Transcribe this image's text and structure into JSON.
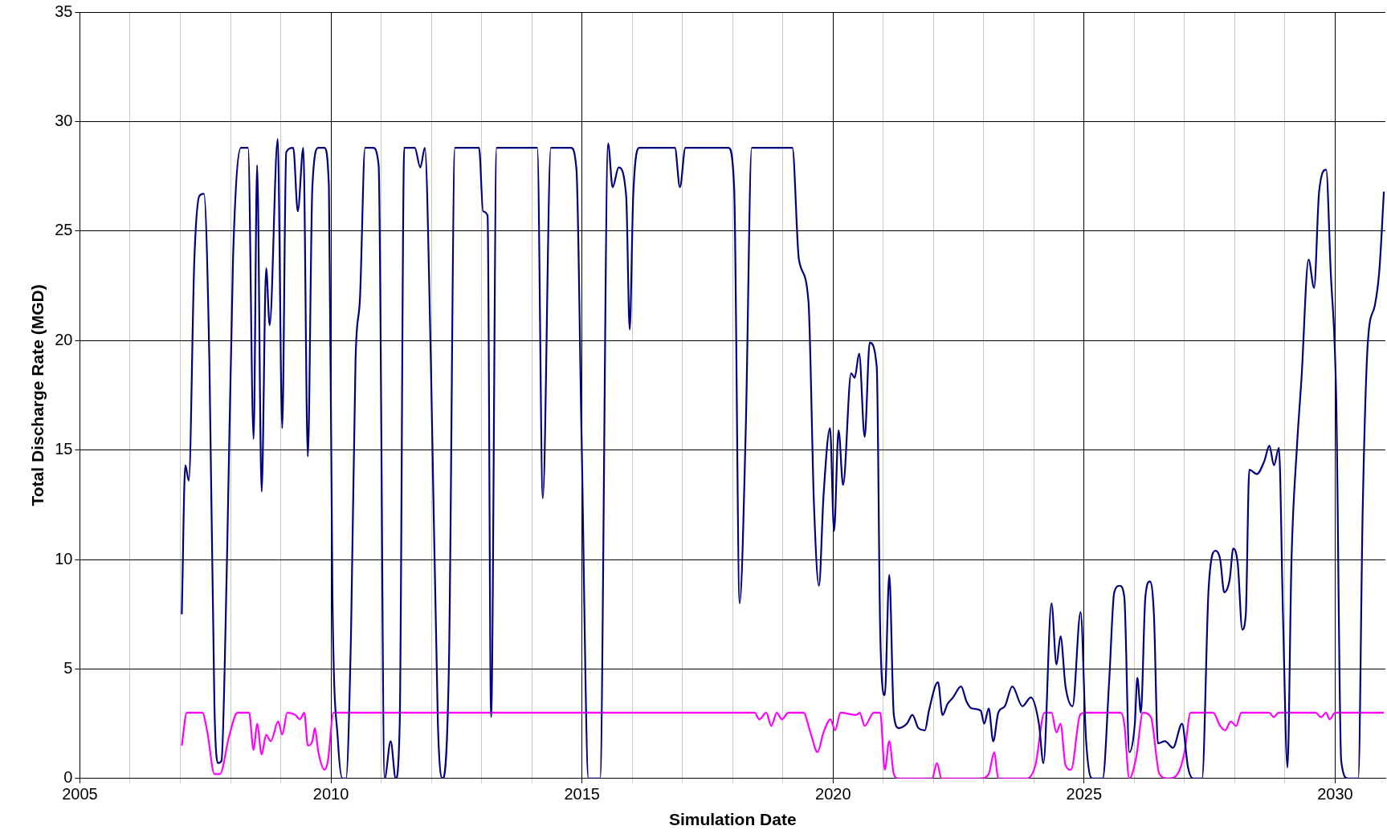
{
  "chart_data": {
    "type": "line",
    "xlabel": "Simulation Date",
    "ylabel": "Total Discharge Rate (MGD)",
    "xlim": [
      2005,
      2031
    ],
    "ylim": [
      0,
      35
    ],
    "xticks": [
      2005,
      {
        "value": 2006,
        "label": null
      },
      {
        "value": 2007,
        "label": null
      },
      {
        "value": 2008,
        "label": null
      },
      {
        "value": 2009,
        "label": null
      },
      2010,
      {
        "value": 2011,
        "label": null
      },
      {
        "value": 2012,
        "label": null
      },
      {
        "value": 2013,
        "label": null
      },
      {
        "value": 2014,
        "label": null
      },
      2015,
      {
        "value": 2016,
        "label": null
      },
      {
        "value": 2017,
        "label": null
      },
      {
        "value": 2018,
        "label": null
      },
      {
        "value": 2019,
        "label": null
      },
      2020,
      {
        "value": 2021,
        "label": null
      },
      {
        "value": 2022,
        "label": null
      },
      {
        "value": 2023,
        "label": null
      },
      {
        "value": 2024,
        "label": null
      },
      2025,
      {
        "value": 2026,
        "label": null
      },
      {
        "value": 2027,
        "label": null
      },
      {
        "value": 2028,
        "label": null
      },
      {
        "value": 2029,
        "label": null
      },
      2030
    ],
    "yticks": [
      0,
      5,
      10,
      15,
      20,
      25,
      30,
      35
    ],
    "grid": true,
    "marker": "none",
    "line_style": "solid",
    "series": [
      {
        "color": "#000080",
        "x": [
          2007.03,
          2007.1,
          2007.17,
          2007.28,
          2007.38,
          2007.47,
          2007.58,
          2007.68,
          2007.75,
          2007.82,
          2007.93,
          2008.05,
          2008.21,
          2008.35,
          2008.46,
          2008.53,
          2008.62,
          2008.71,
          2008.78,
          2008.94,
          2009.03,
          2009.11,
          2009.25,
          2009.34,
          2009.45,
          2009.54,
          2009.63,
          2009.75,
          2009.87,
          2009.96,
          2010.03,
          2010.14,
          2010.23,
          2010.3,
          2010.4,
          2010.49,
          2010.58,
          2010.68,
          2010.84,
          2010.95,
          2011.07,
          2011.19,
          2011.29,
          2011.37,
          2011.46,
          2011.67,
          2011.78,
          2011.87,
          2011.99,
          2012.13,
          2012.22,
          2012.35,
          2012.47,
          2012.95,
          2013.03,
          2013.12,
          2013.19,
          2013.3,
          2014.11,
          2014.22,
          2014.38,
          2014.78,
          2014.89,
          2014.99,
          2015.13,
          2015.36,
          2015.52,
          2015.61,
          2015.73,
          2015.88,
          2015.95,
          2016.02,
          2016.14,
          2016.85,
          2016.95,
          2017.06,
          2017.92,
          2018.03,
          2018.14,
          2018.26,
          2018.38,
          2019.19,
          2019.32,
          2019.51,
          2019.62,
          2019.72,
          2019.81,
          2019.94,
          2020.02,
          2020.11,
          2020.2,
          2020.36,
          2020.43,
          2020.52,
          2020.63,
          2020.73,
          2020.87,
          2020.94,
          2021.03,
          2021.12,
          2021.21,
          2021.31,
          2021.47,
          2021.58,
          2021.7,
          2021.83,
          2021.91,
          2022.09,
          2022.18,
          2022.28,
          2022.39,
          2022.55,
          2022.66,
          2022.76,
          2022.94,
          2023.01,
          2023.1,
          2023.19,
          2023.29,
          2023.42,
          2023.57,
          2023.77,
          2023.94,
          2024.1,
          2024.19,
          2024.35,
          2024.45,
          2024.53,
          2024.63,
          2024.77,
          2024.93,
          2025.04,
          2025.16,
          2025.37,
          2025.5,
          2025.6,
          2025.71,
          2025.8,
          2025.9,
          2026.01,
          2026.06,
          2026.13,
          2026.22,
          2026.31,
          2026.39,
          2026.47,
          2026.61,
          2026.77,
          2026.95,
          2027.07,
          2027.17,
          2027.35,
          2027.48,
          2027.62,
          2027.71,
          2027.79,
          2027.9,
          2027.97,
          2028.06,
          2028.15,
          2028.22,
          2028.29,
          2028.44,
          2028.59,
          2028.69,
          2028.78,
          2028.88,
          2028.96,
          2029.05,
          2029.13,
          2029.24,
          2029.33,
          2029.47,
          2029.58,
          2029.68,
          2029.82,
          2029.91,
          2030.02,
          2030.12,
          2030.25,
          2030.46,
          2030.55,
          2030.65,
          2030.79,
          2030.88,
          2030.97
        ],
        "values": [
          7.5,
          14.3,
          13.6,
          23.7,
          26.6,
          26.7,
          19,
          3.3,
          0.7,
          0.8,
          10,
          23.7,
          28.8,
          28.8,
          15.5,
          28,
          13.1,
          23.3,
          20.7,
          29.2,
          16,
          28.6,
          28.8,
          25.9,
          28.8,
          14.7,
          27,
          28.8,
          28.8,
          27,
          8.3,
          1.7,
          0,
          0,
          6.6,
          19.1,
          22,
          28.8,
          28.8,
          28,
          0,
          1.7,
          0,
          2.5,
          28.8,
          28.8,
          27.9,
          28.8,
          19.1,
          2.5,
          0,
          5.2,
          28.8,
          28.8,
          25.9,
          25.7,
          2.8,
          28.8,
          28.8,
          12.8,
          28.8,
          28.8,
          27.8,
          15.8,
          0,
          0,
          29,
          27,
          27.9,
          26.6,
          20.5,
          26.6,
          28.8,
          28.8,
          27,
          28.8,
          28.8,
          27,
          8,
          15.8,
          28.8,
          28.8,
          23.7,
          21.8,
          12.5,
          8.8,
          12.9,
          16,
          11.3,
          15.9,
          13.4,
          18.5,
          18.3,
          19.4,
          15.6,
          19.9,
          18.8,
          6.6,
          3.8,
          9.3,
          2.9,
          2.3,
          2.5,
          2.9,
          2.3,
          2.2,
          3.1,
          4.4,
          2.9,
          3.4,
          3.7,
          4.2,
          3.5,
          3.2,
          3.1,
          2.5,
          3.2,
          1.7,
          3,
          3.3,
          4.2,
          3.3,
          3.7,
          2.5,
          0.7,
          8,
          5.2,
          6.5,
          4.2,
          3.3,
          7.6,
          1.7,
          0,
          0,
          4.5,
          8.5,
          8.8,
          8.3,
          1.2,
          2.5,
          4.6,
          3,
          8.3,
          9,
          7.5,
          1.6,
          1.7,
          1.4,
          2.5,
          0.5,
          0,
          0,
          8.7,
          10.4,
          10,
          8.5,
          9.1,
          10.5,
          9.8,
          6.8,
          7.5,
          14.1,
          13.9,
          14.5,
          15.2,
          14.3,
          15.1,
          7.5,
          0.5,
          10,
          15.2,
          18.3,
          23.7,
          22.4,
          26.8,
          27.8,
          23.2,
          17.4,
          0.8,
          0,
          0,
          12.5,
          19.9,
          21.6,
          23.2,
          26.8
        ]
      },
      {
        "color": "#ff00ff",
        "x": [
          2007.03,
          2007.13,
          2007.44,
          2007.54,
          2007.68,
          2007.79,
          2007.97,
          2008.14,
          2008.37,
          2008.46,
          2008.53,
          2008.62,
          2008.71,
          2008.8,
          2008.95,
          2009.03,
          2009.13,
          2009.29,
          2009.38,
          2009.47,
          2009.54,
          2009.63,
          2009.68,
          2009.75,
          2009.87,
          2009.94,
          2010.05,
          2018.44,
          2018.53,
          2018.67,
          2018.77,
          2018.88,
          2018.98,
          2019.11,
          2019.41,
          2019.55,
          2019.69,
          2019.81,
          2019.95,
          2020.04,
          2020.15,
          2020.46,
          2020.53,
          2020.63,
          2020.81,
          2020.94,
          2021.03,
          2021.12,
          2021.21,
          2021.31,
          2021.97,
          2022.07,
          2022.16,
          2022.94,
          2023.1,
          2023.21,
          2023.29,
          2023.86,
          2024.03,
          2024.21,
          2024.35,
          2024.45,
          2024.53,
          2024.63,
          2024.74,
          2024.92,
          2025.02,
          2025.73,
          2025.8,
          2025.9,
          2026.04,
          2026.17,
          2026.33,
          2026.5,
          2026.68,
          2026.86,
          2027,
          2027.12,
          2027.57,
          2027.71,
          2027.81,
          2027.92,
          2028.03,
          2028.13,
          2028.68,
          2028.78,
          2028.87,
          2029.61,
          2029.72,
          2029.82,
          2029.89,
          2030,
          2030.97
        ],
        "values": [
          1.5,
          3,
          3,
          2.1,
          0.2,
          0.2,
          1.9,
          3,
          3,
          1.3,
          2.5,
          1.1,
          2,
          1.7,
          2.6,
          2,
          3,
          2.9,
          2.7,
          3,
          1.5,
          1.7,
          2.3,
          1.2,
          0.4,
          0.8,
          3,
          3,
          2.7,
          3,
          2.4,
          3,
          2.7,
          3,
          3,
          2.1,
          1.2,
          2.1,
          2.7,
          2.2,
          3,
          2.9,
          3,
          2.4,
          3,
          3,
          0.4,
          1.7,
          0.2,
          0,
          0,
          0.7,
          0,
          0,
          0.2,
          1.2,
          0,
          0,
          0.6,
          3,
          3,
          2.1,
          2.5,
          0.6,
          0.4,
          2.9,
          3,
          3,
          2.5,
          0,
          1,
          3,
          2.8,
          0.2,
          0,
          0.2,
          1.2,
          3,
          3,
          2.4,
          2.2,
          2.6,
          2.4,
          3,
          3,
          2.8,
          3,
          3,
          2.8,
          3,
          2.7,
          3,
          3
        ]
      }
    ]
  }
}
